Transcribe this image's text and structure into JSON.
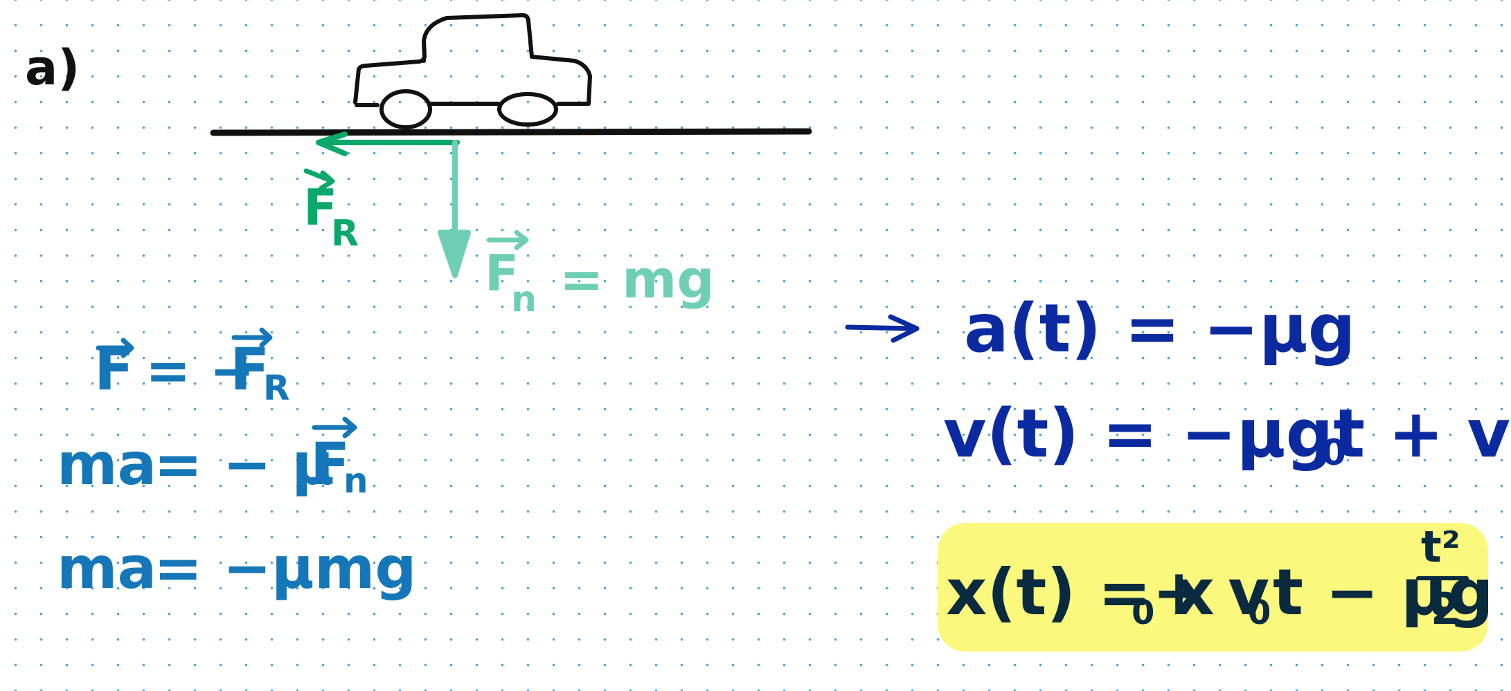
{
  "part_label": "a)",
  "colors": {
    "ink_black": "#111111",
    "friction_green": "#0aa86a",
    "normal_teal": "#6fcfb2",
    "blue_equations": "#1677b8",
    "navy_equations": "#0b2aa0",
    "highlight_yellow": "#fbf87e",
    "final_ink": "#0a2a40",
    "grid_dot": "#4aa3df"
  },
  "icons": {
    "car": "car-sketch-icon",
    "ground": "ground-line",
    "implies": "arrow-right-icon"
  },
  "forces": {
    "friction": {
      "symbol": "F",
      "subscript": "R"
    },
    "normal": {
      "symbol": "F",
      "subscript": "n",
      "equals": "= mg"
    }
  },
  "left_equations": [
    {
      "lhs": "F",
      "rhs": "= −",
      "rhs_vec": "F",
      "rhs_sub": "R"
    },
    {
      "lhs": "ma",
      "rhs": "= − μ",
      "rhs_vec": "F",
      "rhs_sub": "n"
    },
    {
      "lhs": "ma",
      "rhs": "= −μmg"
    }
  ],
  "right_equations": [
    {
      "text": "a(t) = −μg"
    },
    {
      "text": "v(t) = −μgt + v",
      "sub": "0"
    }
  ],
  "final_equation": {
    "lhs": "x(t) = x",
    "x_sub": "0",
    "mid": " + v",
    "v_sub": "0",
    "tail": "t − μg",
    "frac_num": "t²",
    "frac_den": "2"
  }
}
